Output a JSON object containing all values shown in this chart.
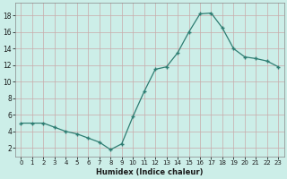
{
  "x": [
    0,
    1,
    2,
    3,
    4,
    5,
    6,
    7,
    8,
    9,
    10,
    11,
    12,
    13,
    14,
    15,
    16,
    17,
    18,
    19,
    20,
    21,
    22,
    23
  ],
  "y": [
    5.0,
    5.0,
    5.0,
    4.5,
    4.0,
    3.7,
    3.2,
    2.7,
    1.8,
    2.5,
    5.8,
    8.8,
    11.5,
    11.8,
    13.5,
    16.0,
    18.2,
    18.3,
    16.5,
    14.0,
    13.0,
    12.8,
    12.5,
    11.8
  ],
  "xlabel": "Humidex (Indice chaleur)",
  "yticks": [
    2,
    4,
    6,
    8,
    10,
    12,
    14,
    16,
    18
  ],
  "xticks": [
    0,
    1,
    2,
    3,
    4,
    5,
    6,
    7,
    8,
    9,
    10,
    11,
    12,
    13,
    14,
    15,
    16,
    17,
    18,
    19,
    20,
    21,
    22,
    23
  ],
  "xlim": [
    -0.5,
    23.5
  ],
  "ylim": [
    1.0,
    19.5
  ],
  "line_color": "#2e7d72",
  "bg_color": "#cceee8",
  "grid_color": "#c8aaaa",
  "tick_color": "#2e7d72",
  "xlabel_color": "#1a1a1a",
  "tick_label_color": "#1a1a1a"
}
